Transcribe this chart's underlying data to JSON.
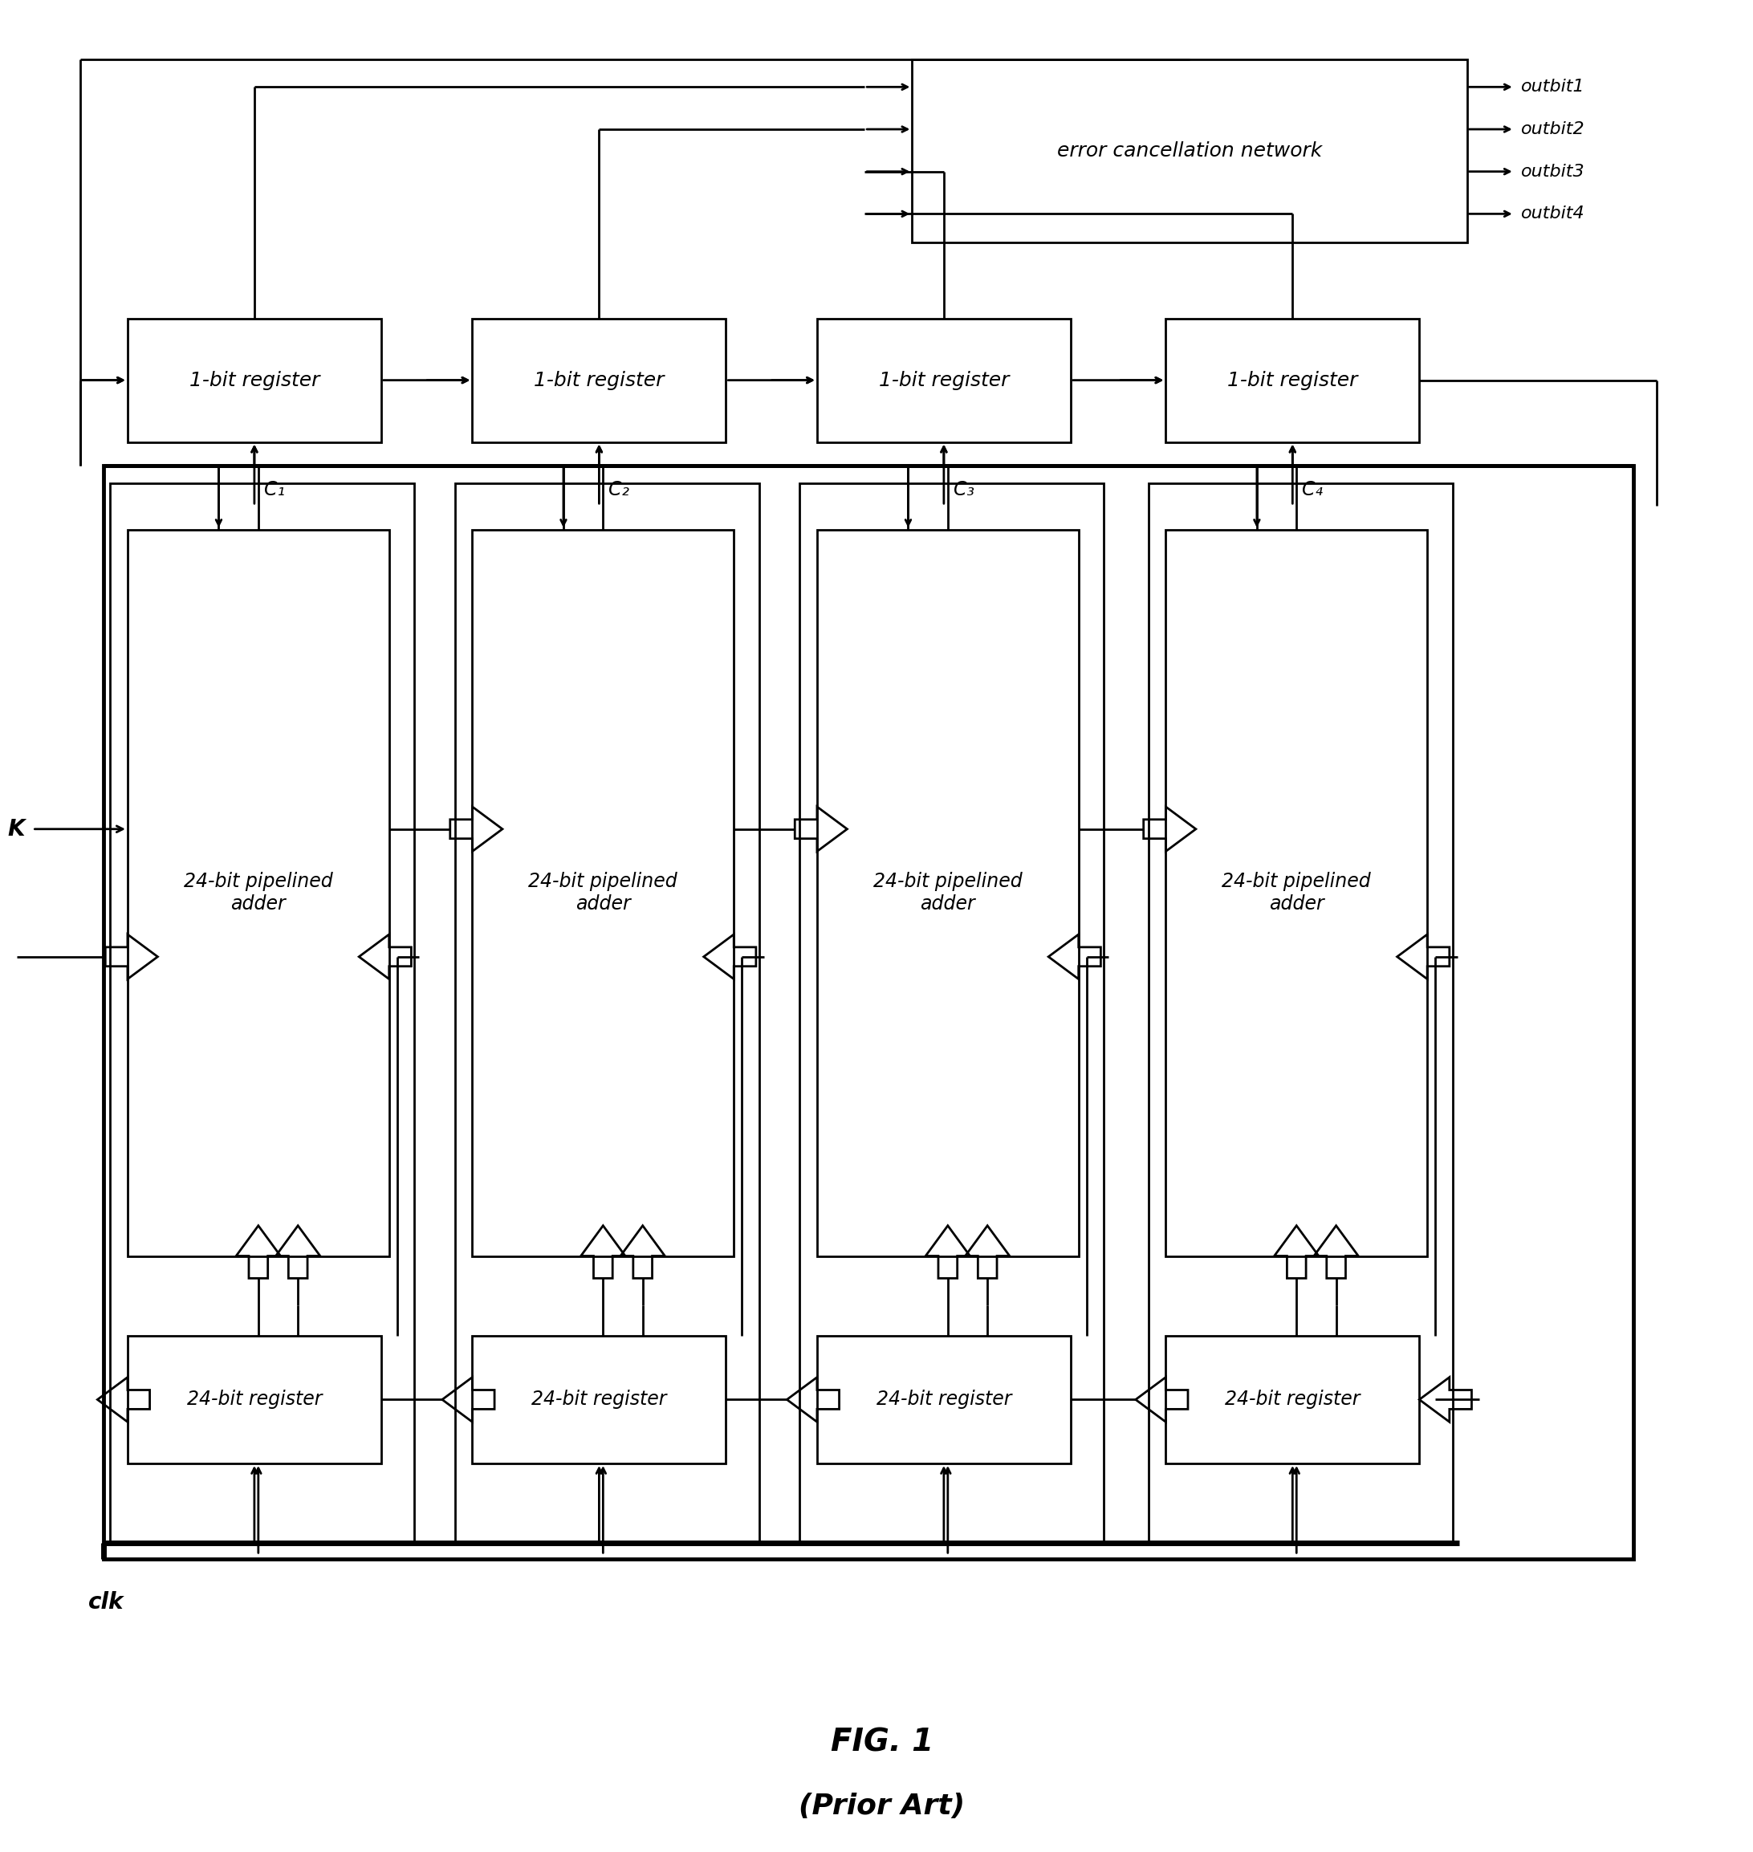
{
  "fig_width": 21.84,
  "fig_height": 23.07,
  "title": "FIG. 1",
  "subtitle": "(Prior Art)",
  "bg_color": "#ffffff",
  "reg1bit_label": "1-bit register",
  "adder_label": "24-bit pipelined\nadder",
  "reg24bit_label": "24-bit register",
  "ecn_label": "error cancellation network",
  "outbits": [
    "outbit1",
    "outbit2",
    "outbit3",
    "outbit4"
  ],
  "stage_labels": [
    "C₁",
    "C₂",
    "C₃",
    "C₄"
  ],
  "input_label": "K",
  "clk_label": "clk"
}
